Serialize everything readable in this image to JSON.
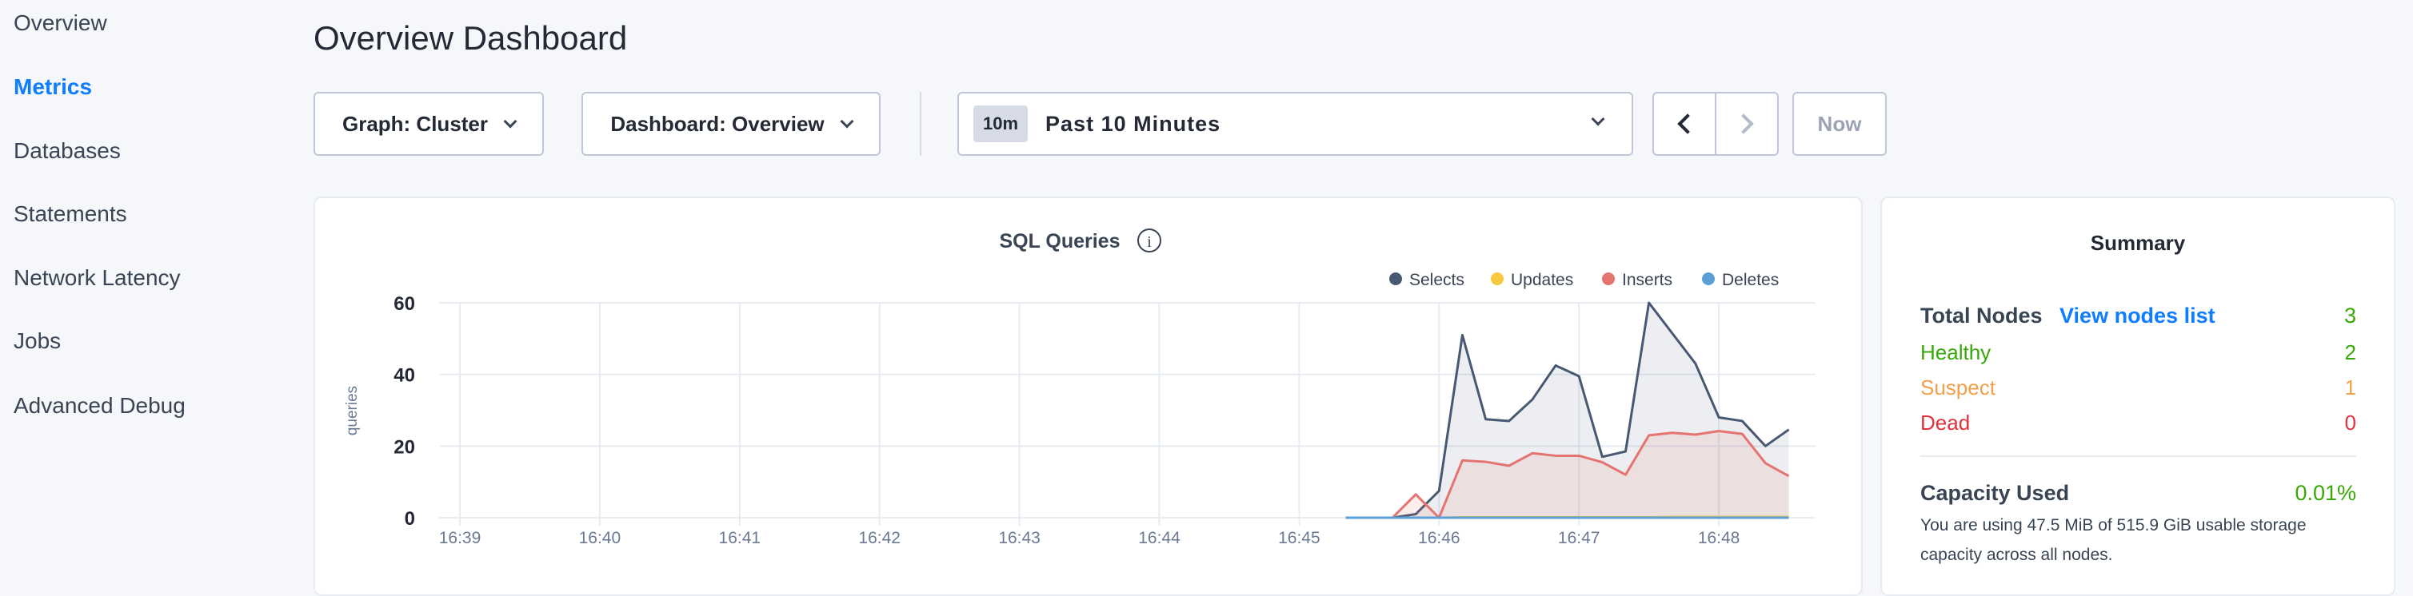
{
  "sidebar": {
    "items": [
      {
        "label": "Overview"
      },
      {
        "label": "Metrics",
        "active": true
      },
      {
        "label": "Databases"
      },
      {
        "label": "Statements"
      },
      {
        "label": "Network Latency"
      },
      {
        "label": "Jobs"
      },
      {
        "label": "Advanced Debug"
      }
    ]
  },
  "header": {
    "title": "Overview Dashboard"
  },
  "toolbar": {
    "graph_label": "Graph: Cluster",
    "dashboard_label": "Dashboard: Overview",
    "time_badge": "10m",
    "time_range": "Past 10 Minutes",
    "now_label": "Now"
  },
  "summary": {
    "title": "Summary",
    "total_nodes_label": "Total Nodes",
    "view_nodes_link": "View nodes list",
    "total_nodes": "3",
    "healthy_label": "Healthy",
    "healthy": "2",
    "suspect_label": "Suspect",
    "suspect": "1",
    "dead_label": "Dead",
    "dead": "0",
    "capacity_label": "Capacity Used",
    "capacity_value": "0.01%",
    "capacity_desc_1": "You are using 47.5 MiB of 515.9 GiB usable storage",
    "capacity_desc_2": "capacity across all nodes."
  },
  "colors": {
    "accent": "#0f7dff",
    "healthy": "#37a806",
    "suspect": "#f0a04a",
    "dead": "#e0323c",
    "selects": "#475872",
    "updates": "#f6c83c",
    "inserts": "#e5736f",
    "deletes": "#5a9fd6"
  },
  "chart_data": {
    "type": "line",
    "title": "SQL Queries",
    "ylabel": "queries",
    "ylim": [
      0,
      60
    ],
    "yticks": [
      "0",
      "20",
      "40",
      "60"
    ],
    "xticks": [
      "16:39",
      "16:40",
      "16:41",
      "16:42",
      "16:43",
      "16:44",
      "16:45",
      "16:46",
      "16:47",
      "16:48"
    ],
    "x": [
      "16:45:20",
      "16:45:30",
      "16:45:40",
      "16:45:50",
      "16:46:00",
      "16:46:10",
      "16:46:20",
      "16:46:30",
      "16:46:40",
      "16:46:50",
      "16:47:00",
      "16:47:10",
      "16:47:20",
      "16:47:30",
      "16:47:40",
      "16:47:50",
      "16:48:00",
      "16:48:10",
      "16:48:20",
      "16:48:30"
    ],
    "legend": "top-right",
    "grid": true,
    "series": [
      {
        "name": "Selects",
        "values": [
          0,
          0,
          0,
          1,
          7.5,
          51,
          27.5,
          27,
          33,
          42.5,
          39.5,
          17,
          18.5,
          60,
          51.5,
          43,
          28,
          27,
          20,
          24.6
        ]
      },
      {
        "name": "Updates",
        "values": [
          0,
          0,
          0,
          0,
          0,
          0.1,
          0.1,
          0.1,
          0.1,
          0.1,
          0.1,
          0.1,
          0.1,
          0.1,
          0.2,
          0.2,
          0.2,
          0.2,
          0.2,
          0.2
        ]
      },
      {
        "name": "Inserts",
        "values": [
          0,
          0,
          0,
          6.5,
          0,
          16,
          15.6,
          14.5,
          18,
          17.3,
          17.3,
          15.5,
          12,
          23,
          23.7,
          23.2,
          24.2,
          23.4,
          15.2,
          11.6
        ]
      },
      {
        "name": "Deletes",
        "values": [
          0,
          0,
          0,
          0,
          0,
          0,
          0,
          0,
          0,
          0,
          0,
          0,
          0,
          0,
          0,
          0,
          0,
          0,
          0,
          0
        ]
      }
    ]
  }
}
